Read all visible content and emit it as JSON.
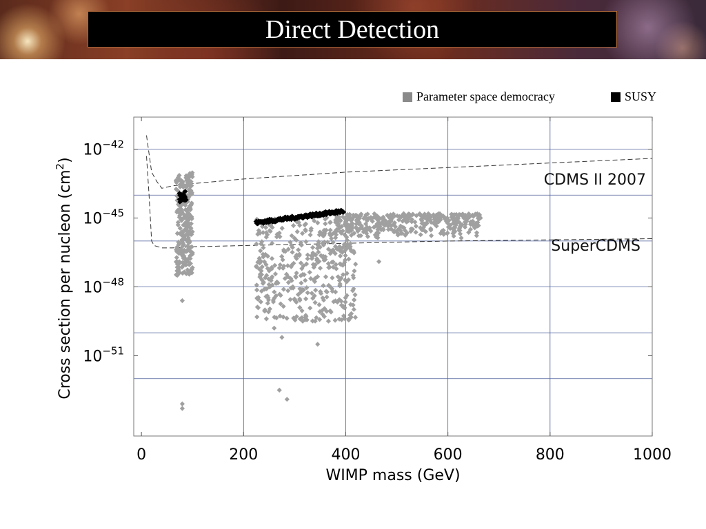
{
  "slide": {
    "title": "Direct Detection"
  },
  "legend": {
    "items": [
      {
        "label": "Parameter space democracy",
        "color": "#8a8a8a"
      },
      {
        "label": "SUSY",
        "color": "#000000"
      }
    ]
  },
  "colors": {
    "point_gray": "#a0a0a0",
    "point_black": "#000000",
    "grid": "#4a5c9a",
    "curve": "#333333"
  },
  "chart_data": {
    "type": "scatter",
    "xlabel_base": "WIMP mass (GeV",
    "xlabel_close": ")",
    "ylabel": "Cross section per nucleon (cm",
    "ylabel_sup": "2",
    "ylabel_close": ")",
    "xlim": [
      -15,
      1000
    ],
    "ylim_log10": [
      -54.5,
      -40.6
    ],
    "y_scale": "log",
    "x_ticks": [
      0,
      200,
      400,
      600,
      800,
      1000
    ],
    "x_tick_labels": [
      "0",
      "200",
      "400",
      "600",
      "800",
      "1000"
    ],
    "y_ticks_log10": [
      -42,
      -45,
      -48,
      -51
    ],
    "y_tick_labels": [
      {
        "base": "10",
        "exp": "−42"
      },
      {
        "base": "10",
        "exp": "−45"
      },
      {
        "base": "10",
        "exp": "−48"
      },
      {
        "base": "10",
        "exp": "−51"
      }
    ],
    "x_grid": [
      200,
      400,
      600,
      800
    ],
    "y_grid_log10": [
      -42,
      -44,
      -46,
      -48,
      -50,
      -52
    ],
    "grid": true,
    "legend_position": "top-right",
    "limit_curves": [
      {
        "name": "CDMS II 2007",
        "points": [
          [
            10,
            -41.4
          ],
          [
            20,
            -43.0
          ],
          [
            30,
            -43.4
          ],
          [
            40,
            -43.7
          ],
          [
            60,
            -43.6
          ],
          [
            100,
            -43.5
          ],
          [
            200,
            -43.3
          ],
          [
            400,
            -43.0
          ],
          [
            600,
            -42.8
          ],
          [
            800,
            -42.6
          ],
          [
            1000,
            -42.4
          ]
        ]
      },
      {
        "name": "SuperCDMS",
        "points": [
          [
            10,
            -42.3
          ],
          [
            15,
            -44.0
          ],
          [
            20,
            -46.0
          ],
          [
            25,
            -46.2
          ],
          [
            40,
            -46.3
          ],
          [
            60,
            -46.3
          ],
          [
            100,
            -46.25
          ],
          [
            200,
            -46.2
          ],
          [
            400,
            -46.1
          ],
          [
            600,
            -46.0
          ],
          [
            800,
            -45.95
          ],
          [
            1000,
            -45.9
          ]
        ]
      }
    ],
    "series": [
      {
        "name": "Parameter space democracy",
        "color": "#a0a0a0",
        "marker": "diamond",
        "regions": [
          {
            "x": [
              68,
              100
            ],
            "y_log10": [
              -47.5,
              -43.0
            ],
            "n": 260
          },
          {
            "x": [
              225,
              420
            ],
            "y_log10": [
              -49.5,
              -44.9
            ],
            "n": 420
          },
          {
            "x": [
              380,
              665
            ],
            "y_log10": [
              -45.9,
              -44.8
            ],
            "n": 380
          }
        ],
        "points": [
          [
            80,
            -53.1
          ],
          [
            80,
            -53.3
          ],
          [
            80,
            -48.6
          ],
          [
            270,
            -52.5
          ],
          [
            285,
            -52.9
          ],
          [
            260,
            -49.8
          ],
          [
            275,
            -50.2
          ],
          [
            345,
            -50.5
          ],
          [
            465,
            -46.9
          ]
        ]
      },
      {
        "name": "SUSY",
        "color": "#000000",
        "marker": "diamond",
        "regions": [
          {
            "x": [
              74,
              88
            ],
            "y_log10": [
              -44.3,
              -43.8
            ],
            "n": 30
          }
        ],
        "line_band": {
          "x0": 225,
          "x1": 395,
          "y0": -45.2,
          "y1": -44.7,
          "n": 120
        }
      }
    ],
    "annotations": [
      {
        "text": "CDMS II 2007"
      },
      {
        "text": "SuperCDMS"
      }
    ]
  }
}
